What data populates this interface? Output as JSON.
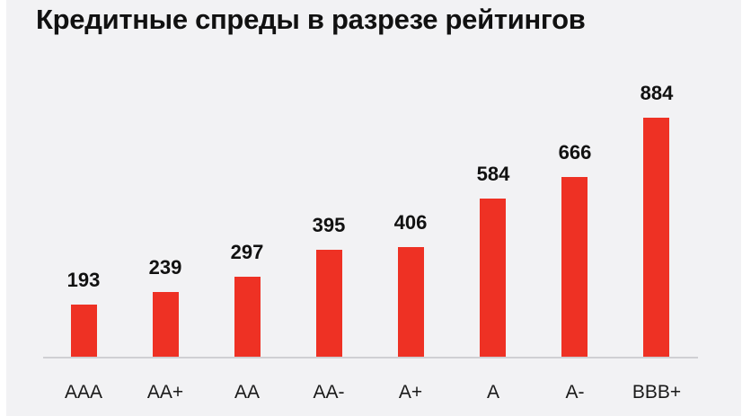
{
  "chart_data": {
    "type": "bar",
    "title": "Кредитные спреды в разрезе рейтингов",
    "xlabel": "",
    "ylabel": "",
    "categories": [
      "AAA",
      "AA+",
      "AA",
      "AA-",
      "A+",
      "A",
      "A-",
      "BBB+"
    ],
    "values": [
      193,
      239,
      297,
      395,
      406,
      584,
      666,
      884
    ],
    "data_labels": [
      "193",
      "239",
      "297",
      "395",
      "406",
      "584",
      "666",
      "884"
    ],
    "ylim": [
      0,
      884
    ],
    "grid": false,
    "legend": null,
    "bar_color": "#ee3124",
    "background_color": "#f2f2f4"
  }
}
